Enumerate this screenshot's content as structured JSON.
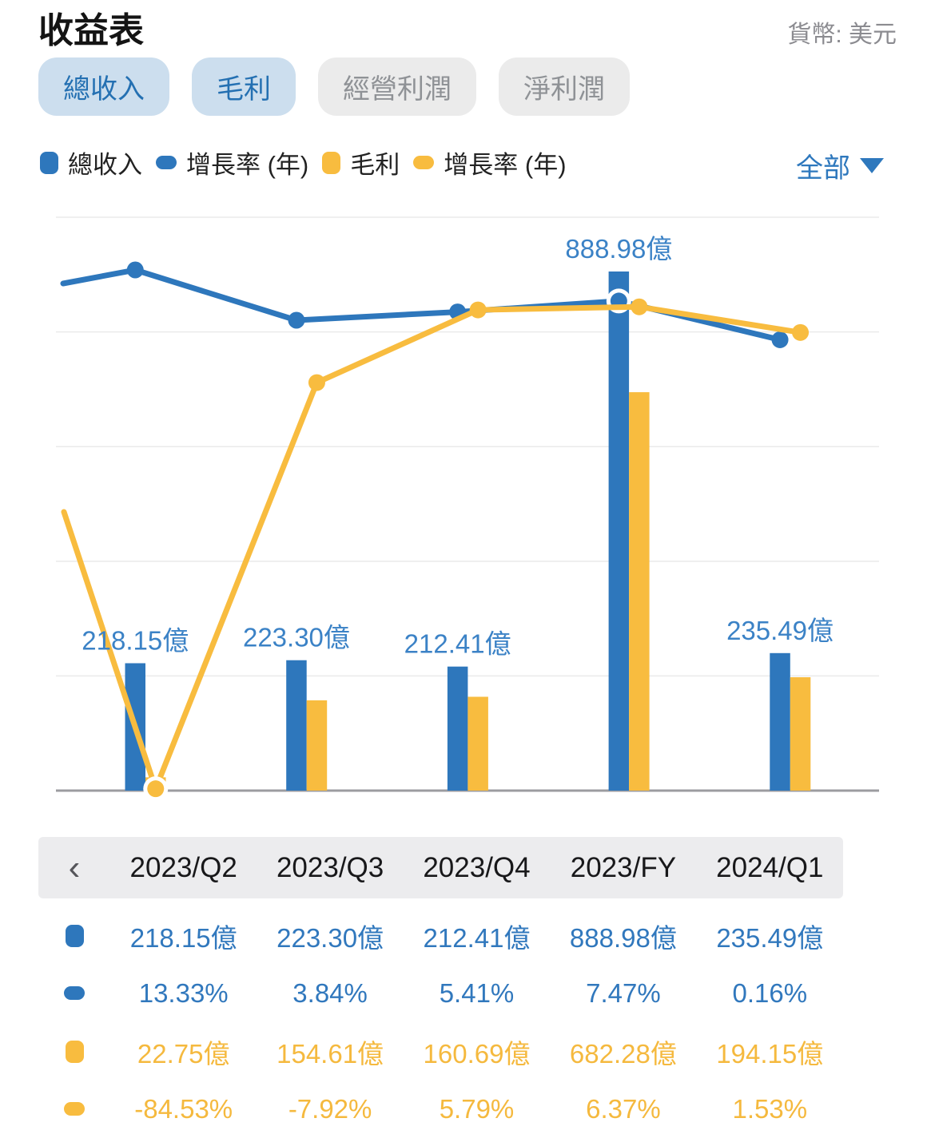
{
  "page": {
    "title": "收益表",
    "currency_label": "貨幣: 美元"
  },
  "colors": {
    "blue": "#2e77bc",
    "yellow": "#f8bc3f",
    "label_blue": "#3b82c6",
    "active_tab_bg": "#ccdeee",
    "inactive_tab_bg": "#ebebeb"
  },
  "tabs": [
    {
      "label": "總收入",
      "active": true
    },
    {
      "label": "毛利",
      "active": true
    },
    {
      "label": "經營利潤",
      "active": false
    },
    {
      "label": "淨利潤",
      "active": false
    }
  ],
  "legend": [
    {
      "label": "總收入",
      "icon": "bar-swatch",
      "color": "#2e77bc"
    },
    {
      "label": "增長率 (年)",
      "icon": "line-swatch",
      "color": "#2e77bc"
    },
    {
      "label": "毛利",
      "icon": "bar-swatch",
      "color": "#f8bc3f"
    },
    {
      "label": "增長率 (年)",
      "icon": "line-swatch",
      "color": "#f8bc3f"
    }
  ],
  "range_selector": {
    "label": "全部"
  },
  "chart_data": {
    "type": "combo-bar-line",
    "categories": [
      "2023/Q2",
      "2023/Q3",
      "2023/Q4",
      "2023/FY",
      "2024/Q1"
    ],
    "series": [
      {
        "name": "總收入",
        "type": "bar",
        "color": "#2e77bc",
        "unit": "億",
        "values": [
          218.15,
          223.3,
          212.41,
          888.98,
          235.49
        ]
      },
      {
        "name": "增長率 (年)",
        "type": "line",
        "color": "#2e77bc",
        "unit": "%",
        "values": [
          13.33,
          3.84,
          5.41,
          7.47,
          0.16
        ],
        "highlight_index": 3
      },
      {
        "name": "毛利",
        "type": "bar",
        "color": "#f8bc3f",
        "unit": "億",
        "values": [
          22.75,
          154.61,
          160.69,
          682.28,
          194.15
        ]
      },
      {
        "name": "增長率 (年)",
        "type": "line",
        "color": "#f8bc3f",
        "unit": "%",
        "values": [
          -84.53,
          -7.92,
          5.79,
          6.37,
          1.53
        ],
        "highlight_index": 0
      }
    ],
    "bar_labels": [
      "218.15億",
      "223.30億",
      "212.41億",
      "888.98億",
      "235.49億"
    ],
    "grid": true,
    "y_axis_labels": false,
    "legend_position": "top"
  },
  "table": {
    "nav_prev": "‹",
    "columns": [
      "2023/Q2",
      "2023/Q3",
      "2023/Q4",
      "2023/FY",
      "2024/Q1"
    ],
    "rows": [
      {
        "icon": "bar-swatch",
        "color": "#2e77bc",
        "values": [
          "218.15億",
          "223.30億",
          "212.41億",
          "888.98億",
          "235.49億"
        ]
      },
      {
        "icon": "line-swatch",
        "color": "#2e77bc",
        "values": [
          "13.33%",
          "3.84%",
          "5.41%",
          "7.47%",
          "0.16%"
        ]
      },
      {
        "icon": "bar-swatch",
        "color": "#f8bc3f",
        "values": [
          "22.75億",
          "154.61億",
          "160.69億",
          "682.28億",
          "194.15億"
        ]
      },
      {
        "icon": "line-swatch",
        "color": "#f8bc3f",
        "values": [
          "-84.53%",
          "-7.92%",
          "5.79%",
          "6.37%",
          "1.53%"
        ]
      }
    ]
  }
}
